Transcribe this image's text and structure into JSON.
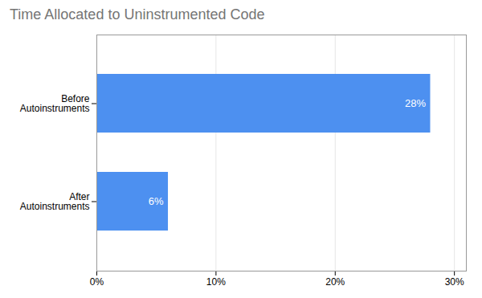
{
  "chart_data": {
    "type": "bar",
    "orientation": "horizontal",
    "title": "Time Allocated to Uninstrumented Code",
    "categories": [
      "After\nAutoinstruments",
      "Before\nAutoinstruments"
    ],
    "values": [
      6,
      28
    ],
    "value_labels": [
      "6%",
      "28%"
    ],
    "data_labels": true,
    "color": "#4d90f0",
    "xlim": [
      0,
      31
    ],
    "xticks": [
      {
        "value": 0,
        "label": "0%"
      },
      {
        "value": 10,
        "label": "10%"
      },
      {
        "value": 20,
        "label": "20%"
      },
      {
        "value": 30,
        "label": "30%"
      }
    ],
    "grid": true
  }
}
